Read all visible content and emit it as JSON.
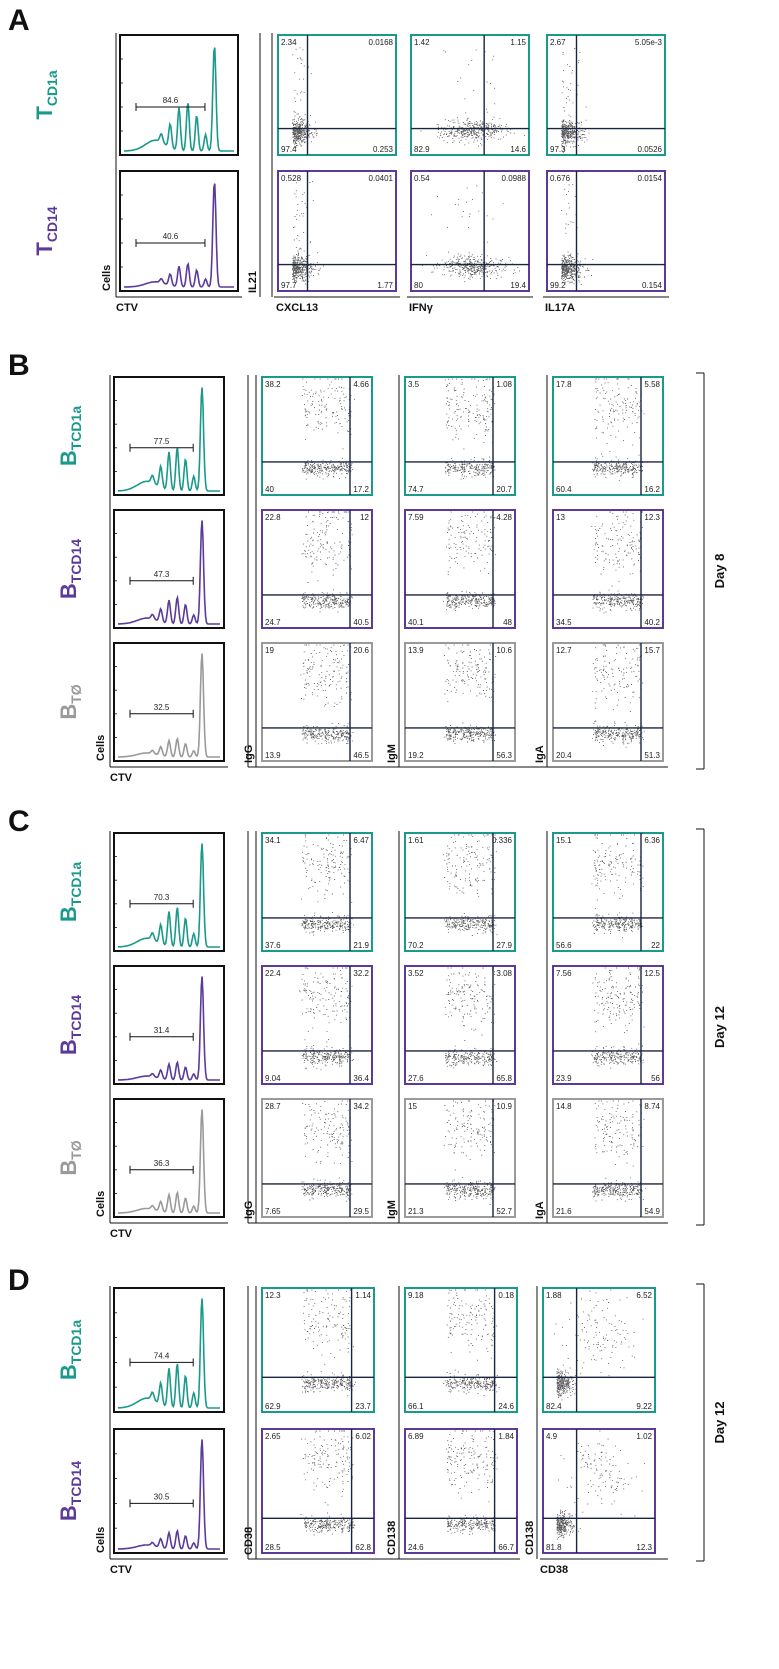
{
  "colors": {
    "TCD1a": "#1a9a8a",
    "TCD14": "#5b3a9a",
    "TO": "#9a9a9a",
    "axis": "#111111"
  },
  "panels": [
    {
      "letter": "A",
      "day": "",
      "y_axis_labels": [
        "IL21",
        "",
        "",
        ""
      ],
      "x_axis_labels": [
        "CTV",
        "CXCL13",
        "IFNγ",
        "IL17A"
      ],
      "hist_ylabel": "Cells",
      "rows": [
        {
          "group": "TCD1a",
          "main": "T",
          "sub": "CD1a",
          "gate": "84.6",
          "plots": [
            [
              "2.34",
              "0.0168",
              "97.4",
              "0.253"
            ],
            [
              "1.42",
              "1.15",
              "82.9",
              "14.6"
            ],
            [
              "2.67",
              "5.05e-3",
              "97.3",
              "0.0526"
            ]
          ]
        },
        {
          "group": "TCD14",
          "main": "T",
          "sub": "CD14",
          "gate": "40.6",
          "plots": [
            [
              "0.528",
              "0.0401",
              "97.7",
              "1.77"
            ],
            [
              "0.54",
              "0.0988",
              "80",
              "19.4"
            ],
            [
              "0.676",
              "0.0154",
              "99.2",
              "0.154"
            ]
          ]
        }
      ]
    },
    {
      "letter": "B",
      "day": "Day 8",
      "y_axis_labels": [
        "IgG",
        "IgM",
        "IgA"
      ],
      "x_axis_labels": [
        "CTV"
      ],
      "hist_ylabel": "Cells",
      "rows": [
        {
          "group": "TCD1a",
          "main": "B",
          "sub": "TCD1a",
          "gate": "77.5",
          "plots": [
            [
              "38.2",
              "4.66",
              "40",
              "17.2"
            ],
            [
              "3.5",
              "1.08",
              "74.7",
              "20.7"
            ],
            [
              "17.8",
              "5.58",
              "60.4",
              "16.2"
            ]
          ]
        },
        {
          "group": "TCD14",
          "main": "B",
          "sub": "TCD14",
          "gate": "47.3",
          "plots": [
            [
              "22.8",
              "12",
              "24.7",
              "40.5"
            ],
            [
              "7.59",
              "4.28",
              "40.1",
              "48"
            ],
            [
              "13",
              "12.3",
              "34.5",
              "40.2"
            ]
          ]
        },
        {
          "group": "TO",
          "main": "B",
          "sub": "TØ",
          "gate": "32.5",
          "plots": [
            [
              "19",
              "20.6",
              "13.9",
              "46.5"
            ],
            [
              "13.9",
              "10.6",
              "19.2",
              "56.3"
            ],
            [
              "12.7",
              "15.7",
              "20.4",
              "51.3"
            ]
          ]
        }
      ]
    },
    {
      "letter": "C",
      "day": "Day 12",
      "y_axis_labels": [
        "IgG",
        "IgM",
        "IgA"
      ],
      "x_axis_labels": [
        "CTV"
      ],
      "hist_ylabel": "Cells",
      "rows": [
        {
          "group": "TCD1a",
          "main": "B",
          "sub": "TCD1a",
          "gate": "70.3",
          "plots": [
            [
              "34.1",
              "6.47",
              "37.6",
              "21.9"
            ],
            [
              "1.61",
              "0.336",
              "70.2",
              "27.9"
            ],
            [
              "15.1",
              "6.36",
              "56.6",
              "22"
            ]
          ]
        },
        {
          "group": "TCD14",
          "main": "B",
          "sub": "TCD14",
          "gate": "31.4",
          "plots": [
            [
              "22.4",
              "32.2",
              "9.04",
              "36.4"
            ],
            [
              "3.52",
              "3.08",
              "27.6",
              "65.8"
            ],
            [
              "7.56",
              "12.5",
              "23.9",
              "56"
            ]
          ]
        },
        {
          "group": "TO",
          "main": "B",
          "sub": "TØ",
          "gate": "36.3",
          "plots": [
            [
              "28.7",
              "34.2",
              "7.65",
              "29.5"
            ],
            [
              "15",
              "10.9",
              "21.3",
              "52.7"
            ],
            [
              "14.8",
              "8.74",
              "21.6",
              "54.9"
            ]
          ]
        }
      ]
    },
    {
      "letter": "D",
      "day": "Day 12",
      "y_axis_labels": [
        "CD38",
        "CD138",
        "CD138"
      ],
      "x_axis_labels": [
        "CTV",
        "CD38"
      ],
      "hist_ylabel": "Cells",
      "rows": [
        {
          "group": "TCD1a",
          "main": "B",
          "sub": "TCD1a",
          "gate": "74.4",
          "plots": [
            [
              "12.3",
              "1.14",
              "62.9",
              "23.7"
            ],
            [
              "9.18",
              "0.18",
              "66.1",
              "24.6"
            ],
            [
              "1.88",
              "6.52",
              "82.4",
              "9.22"
            ]
          ]
        },
        {
          "group": "TCD14",
          "main": "B",
          "sub": "TCD14",
          "gate": "30.5",
          "plots": [
            [
              "2.65",
              "6.02",
              "28.5",
              "62.8"
            ],
            [
              "6.89",
              "1.84",
              "24.6",
              "66.7"
            ],
            [
              "4.9",
              "1.02",
              "81.8",
              "12.3"
            ]
          ]
        }
      ]
    }
  ]
}
